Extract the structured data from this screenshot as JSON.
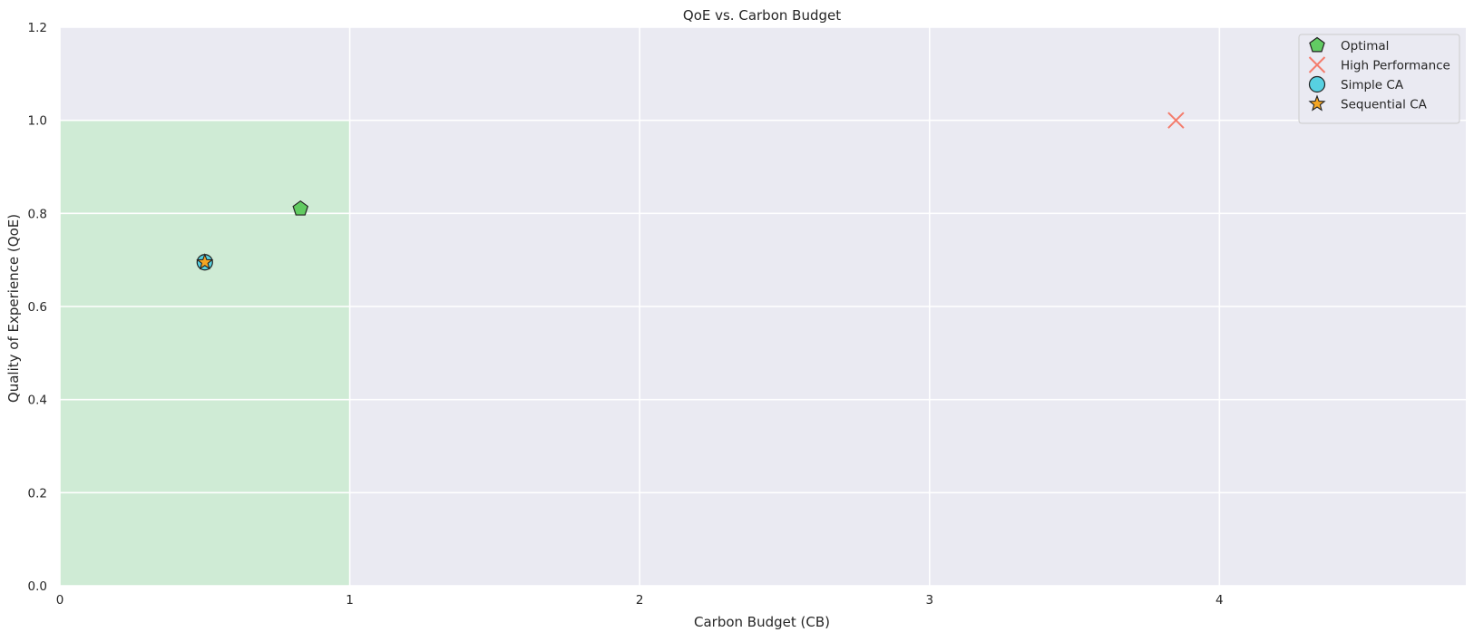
{
  "chart_data": {
    "type": "scatter",
    "title": "QoE vs. Carbon Budget",
    "xlabel": "Carbon Budget (CB)",
    "ylabel": "Quality of Experience (QoE)",
    "xlim": [
      0,
      4.85
    ],
    "ylim": [
      0,
      1.2
    ],
    "xticks": [
      0,
      1,
      2,
      3,
      4
    ],
    "yticks": [
      0.0,
      0.2,
      0.4,
      0.6,
      0.8,
      1.0,
      1.2
    ],
    "grid": true,
    "legend_position": "top-right",
    "shaded_region": {
      "x": [
        0,
        1
      ],
      "y": [
        0,
        1
      ],
      "color": "#cfebd5"
    },
    "series": [
      {
        "name": "Optimal",
        "marker": "pentagon",
        "color": "#5bc95b",
        "points": [
          {
            "x": 0.83,
            "y": 0.81
          }
        ]
      },
      {
        "name": "High Performance",
        "marker": "x",
        "color": "#f47c6c",
        "points": [
          {
            "x": 3.85,
            "y": 1.0
          }
        ]
      },
      {
        "name": "Simple CA",
        "marker": "circle",
        "color": "#4fd0e0",
        "points": [
          {
            "x": 0.5,
            "y": 0.695
          }
        ]
      },
      {
        "name": "Sequential CA",
        "marker": "star",
        "color": "#f5a623",
        "points": [
          {
            "x": 0.5,
            "y": 0.695
          }
        ]
      }
    ]
  }
}
